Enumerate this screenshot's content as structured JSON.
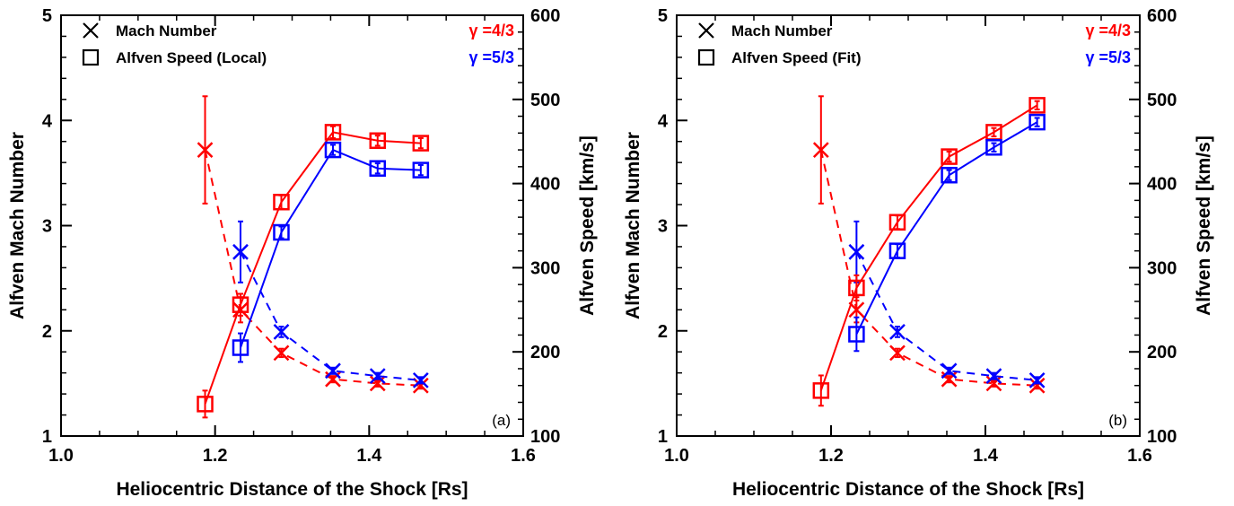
{
  "colors": {
    "red": "#ff0000",
    "blue": "#0000ff",
    "axis": "#000000"
  },
  "chart_data": [
    {
      "type": "line",
      "panel_label": "(a)",
      "xlabel": "Heliocentric Distance of the Shock [Rs]",
      "ylabel": "Alfven Mach Number",
      "y2label": "Alfven Speed [km/s]",
      "xlim": [
        1.0,
        1.6
      ],
      "ylim": [
        1,
        5
      ],
      "y2lim": [
        100,
        600
      ],
      "xticks": [
        "1.0",
        "1.2",
        "1.4",
        "1.6"
      ],
      "yticks": [
        "1",
        "2",
        "3",
        "4",
        "5"
      ],
      "y2ticks": [
        "100",
        "200",
        "300",
        "400",
        "500",
        "600"
      ],
      "grid": false,
      "legend": {
        "position": "top-left",
        "items": [
          {
            "marker": "cross",
            "label": "Mach Number"
          },
          {
            "marker": "square",
            "label": "Alfven Speed (Local)"
          }
        ],
        "gamma": [
          {
            "label": "γ =4/3",
            "color": "#ff0000"
          },
          {
            "label": "γ =5/3",
            "color": "#0000ff"
          }
        ]
      },
      "series": [
        {
          "kind": "mach",
          "gamma": "4/3",
          "color": "#ff0000",
          "style": "dashed",
          "axis": "left",
          "x": [
            1.187,
            1.233,
            1.286,
            1.353,
            1.411,
            1.467
          ],
          "y": [
            3.72,
            2.2,
            1.79,
            1.54,
            1.5,
            1.48
          ],
          "err": [
            0.51,
            0.12,
            0.04,
            0.03,
            0.03,
            0.03
          ]
        },
        {
          "kind": "mach",
          "gamma": "5/3",
          "color": "#0000ff",
          "style": "dashed",
          "axis": "left",
          "x": [
            1.233,
            1.286,
            1.353,
            1.411,
            1.467
          ],
          "y": [
            2.75,
            1.99,
            1.62,
            1.57,
            1.53
          ],
          "err": [
            0.29,
            0.05,
            0.03,
            0.03,
            0.03
          ]
        },
        {
          "kind": "speed",
          "gamma": "4/3",
          "color": "#ff0000",
          "style": "solid",
          "axis": "right",
          "x": [
            1.187,
            1.233,
            1.286,
            1.353,
            1.411,
            1.467
          ],
          "y": [
            138,
            256,
            378,
            461,
            451,
            448
          ],
          "err": [
            16,
            13,
            8,
            7,
            6,
            6
          ]
        },
        {
          "kind": "speed",
          "gamma": "5/3",
          "color": "#0000ff",
          "style": "solid",
          "axis": "right",
          "x": [
            1.233,
            1.286,
            1.353,
            1.411,
            1.467
          ],
          "y": [
            205,
            342,
            440,
            418,
            416
          ],
          "err": [
            17,
            7,
            6,
            6,
            6
          ]
        }
      ]
    },
    {
      "type": "line",
      "panel_label": "(b)",
      "xlabel": "Heliocentric Distance of the Shock [Rs]",
      "ylabel": "Alfven Mach Number",
      "y2label": "Alfven Speed [km/s]",
      "xlim": [
        1.0,
        1.6
      ],
      "ylim": [
        1,
        5
      ],
      "y2lim": [
        100,
        600
      ],
      "xticks": [
        "1.0",
        "1.2",
        "1.4",
        "1.6"
      ],
      "yticks": [
        "1",
        "2",
        "3",
        "4",
        "5"
      ],
      "y2ticks": [
        "100",
        "200",
        "300",
        "400",
        "500",
        "600"
      ],
      "grid": false,
      "legend": {
        "position": "top-left",
        "items": [
          {
            "marker": "cross",
            "label": "Mach Number"
          },
          {
            "marker": "square",
            "label": "Alfven Speed (Fit)"
          }
        ],
        "gamma": [
          {
            "label": "γ =4/3",
            "color": "#ff0000"
          },
          {
            "label": "γ =5/3",
            "color": "#0000ff"
          }
        ]
      },
      "series": [
        {
          "kind": "mach",
          "gamma": "4/3",
          "color": "#ff0000",
          "style": "dashed",
          "axis": "left",
          "x": [
            1.187,
            1.233,
            1.286,
            1.353,
            1.411,
            1.467
          ],
          "y": [
            3.72,
            2.2,
            1.79,
            1.54,
            1.5,
            1.48
          ],
          "err": [
            0.51,
            0.12,
            0.04,
            0.03,
            0.03,
            0.03
          ]
        },
        {
          "kind": "mach",
          "gamma": "5/3",
          "color": "#0000ff",
          "style": "dashed",
          "axis": "left",
          "x": [
            1.233,
            1.286,
            1.353,
            1.411,
            1.467
          ],
          "y": [
            2.75,
            1.99,
            1.62,
            1.57,
            1.53
          ],
          "err": [
            0.29,
            0.05,
            0.03,
            0.03,
            0.03
          ]
        },
        {
          "kind": "speed",
          "gamma": "4/3",
          "color": "#ff0000",
          "style": "solid",
          "axis": "right",
          "x": [
            1.187,
            1.233,
            1.286,
            1.353,
            1.411,
            1.467
          ],
          "y": [
            154,
            276,
            354,
            432,
            461,
            493
          ],
          "err": [
            18,
            15,
            8,
            6,
            5,
            5
          ]
        },
        {
          "kind": "speed",
          "gamma": "5/3",
          "color": "#0000ff",
          "style": "solid",
          "axis": "right",
          "x": [
            1.233,
            1.286,
            1.353,
            1.411,
            1.467
          ],
          "y": [
            221,
            320,
            410,
            443,
            473
          ],
          "err": [
            20,
            8,
            6,
            5,
            5
          ]
        }
      ]
    }
  ]
}
